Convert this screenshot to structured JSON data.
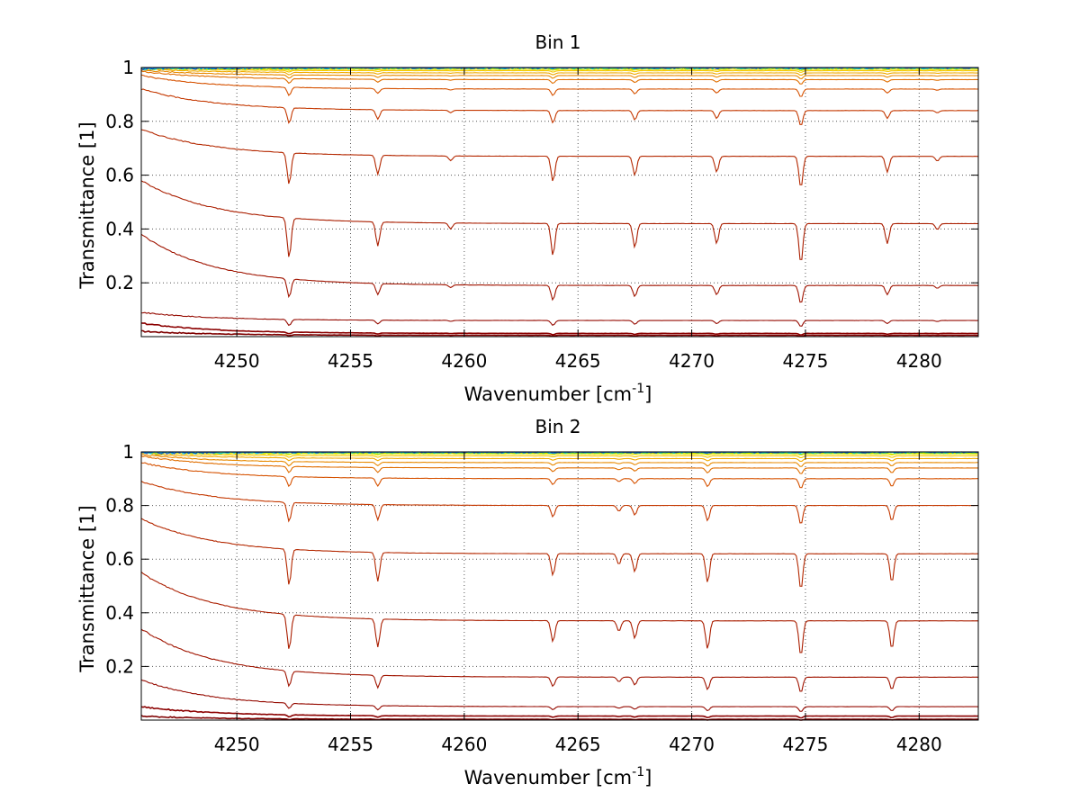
{
  "chart_data": [
    {
      "type": "line",
      "title": "Bin 1",
      "xlabel": "Wavenumber [cm",
      "xlabel_sup": "-1",
      "xlabel_suffix": "]",
      "ylabel": "Transmittance [1]",
      "xlim": [
        4245.8,
        4282.6
      ],
      "ylim": [
        0,
        1.0
      ],
      "x_ticks": [
        4250,
        4255,
        4260,
        4265,
        4270,
        4275,
        4280
      ],
      "y_ticks": [
        0.2,
        0.4,
        0.6,
        0.8,
        1
      ],
      "grid": true,
      "absorption_lines": [
        {
          "x": 4252.3,
          "w": 1.0
        },
        {
          "x": 4256.2,
          "w": 0.6
        },
        {
          "x": 4259.4,
          "w": 0.15
        },
        {
          "x": 4263.9,
          "w": 0.8
        },
        {
          "x": 4267.5,
          "w": 0.6
        },
        {
          "x": 4271.1,
          "w": 0.5
        },
        {
          "x": 4274.8,
          "w": 1.0
        },
        {
          "x": 4278.6,
          "w": 0.5
        },
        {
          "x": 4280.8,
          "w": 0.15
        }
      ],
      "series": [
        {
          "color": "#7f0000",
          "base": 0.005,
          "start": 0.02
        },
        {
          "color": "#8b0000",
          "base": 0.012,
          "start": 0.05
        },
        {
          "color": "#950a00",
          "base": 0.06,
          "start": 0.09
        },
        {
          "color": "#a01400",
          "base": 0.19,
          "start": 0.38
        },
        {
          "color": "#aa1e00",
          "base": 0.42,
          "start": 0.58
        },
        {
          "color": "#b42800",
          "base": 0.67,
          "start": 0.77
        },
        {
          "color": "#c43800",
          "base": 0.84,
          "start": 0.92
        },
        {
          "color": "#d65200",
          "base": 0.92,
          "start": 0.97
        },
        {
          "color": "#e06e00",
          "base": 0.955,
          "start": 0.985
        },
        {
          "color": "#e88a00",
          "base": 0.97,
          "start": 0.99
        },
        {
          "color": "#f0aa00",
          "base": 0.98,
          "start": 0.995
        },
        {
          "color": "#f5c800",
          "base": 0.988,
          "start": 0.998
        },
        {
          "color": "#f0e000",
          "base": 0.993,
          "start": 1.0
        },
        {
          "color": "#c8f000",
          "base": 0.996,
          "start": 1.0
        },
        {
          "color": "#60e060",
          "base": 0.998,
          "start": 1.0
        },
        {
          "color": "#00c8e0",
          "base": 0.999,
          "start": 1.0
        },
        {
          "color": "#0050e0",
          "base": 1.0,
          "start": 1.0
        }
      ]
    },
    {
      "type": "line",
      "title": "Bin 2",
      "xlabel": "Wavenumber [cm",
      "xlabel_sup": "-1",
      "xlabel_suffix": "]",
      "ylabel": "Transmittance [1]",
      "xlim": [
        4245.8,
        4282.6
      ],
      "ylim": [
        0,
        1.0
      ],
      "x_ticks": [
        4250,
        4255,
        4260,
        4265,
        4270,
        4275,
        4280
      ],
      "y_ticks": [
        0.2,
        0.4,
        0.6,
        0.8,
        1
      ],
      "grid": true,
      "absorption_lines": [
        {
          "x": 4252.3,
          "w": 1.0
        },
        {
          "x": 4256.2,
          "w": 0.8
        },
        {
          "x": 4263.9,
          "w": 0.6
        },
        {
          "x": 4266.8,
          "w": 0.3
        },
        {
          "x": 4267.5,
          "w": 0.5
        },
        {
          "x": 4270.7,
          "w": 0.8
        },
        {
          "x": 4274.8,
          "w": 1.0
        },
        {
          "x": 4278.8,
          "w": 0.8
        }
      ],
      "series": [
        {
          "color": "#7f0000",
          "base": 0.003,
          "start": 0.015
        },
        {
          "color": "#8b0000",
          "base": 0.015,
          "start": 0.05
        },
        {
          "color": "#950a00",
          "base": 0.05,
          "start": 0.15
        },
        {
          "color": "#a01400",
          "base": 0.16,
          "start": 0.34
        },
        {
          "color": "#aa1e00",
          "base": 0.37,
          "start": 0.55
        },
        {
          "color": "#b42800",
          "base": 0.62,
          "start": 0.75
        },
        {
          "color": "#c43800",
          "base": 0.8,
          "start": 0.89
        },
        {
          "color": "#d65200",
          "base": 0.9,
          "start": 0.96
        },
        {
          "color": "#e06e00",
          "base": 0.94,
          "start": 0.985
        },
        {
          "color": "#e88a00",
          "base": 0.96,
          "start": 0.99
        },
        {
          "color": "#f0aa00",
          "base": 0.975,
          "start": 0.995
        },
        {
          "color": "#f5c800",
          "base": 0.985,
          "start": 0.998
        },
        {
          "color": "#f0e000",
          "base": 0.992,
          "start": 1.0
        },
        {
          "color": "#c8f000",
          "base": 0.995,
          "start": 1.0
        },
        {
          "color": "#60e060",
          "base": 0.997,
          "start": 1.0
        },
        {
          "color": "#00c8e0",
          "base": 0.999,
          "start": 1.0
        },
        {
          "color": "#0050e0",
          "base": 1.0,
          "start": 1.0
        }
      ]
    }
  ]
}
